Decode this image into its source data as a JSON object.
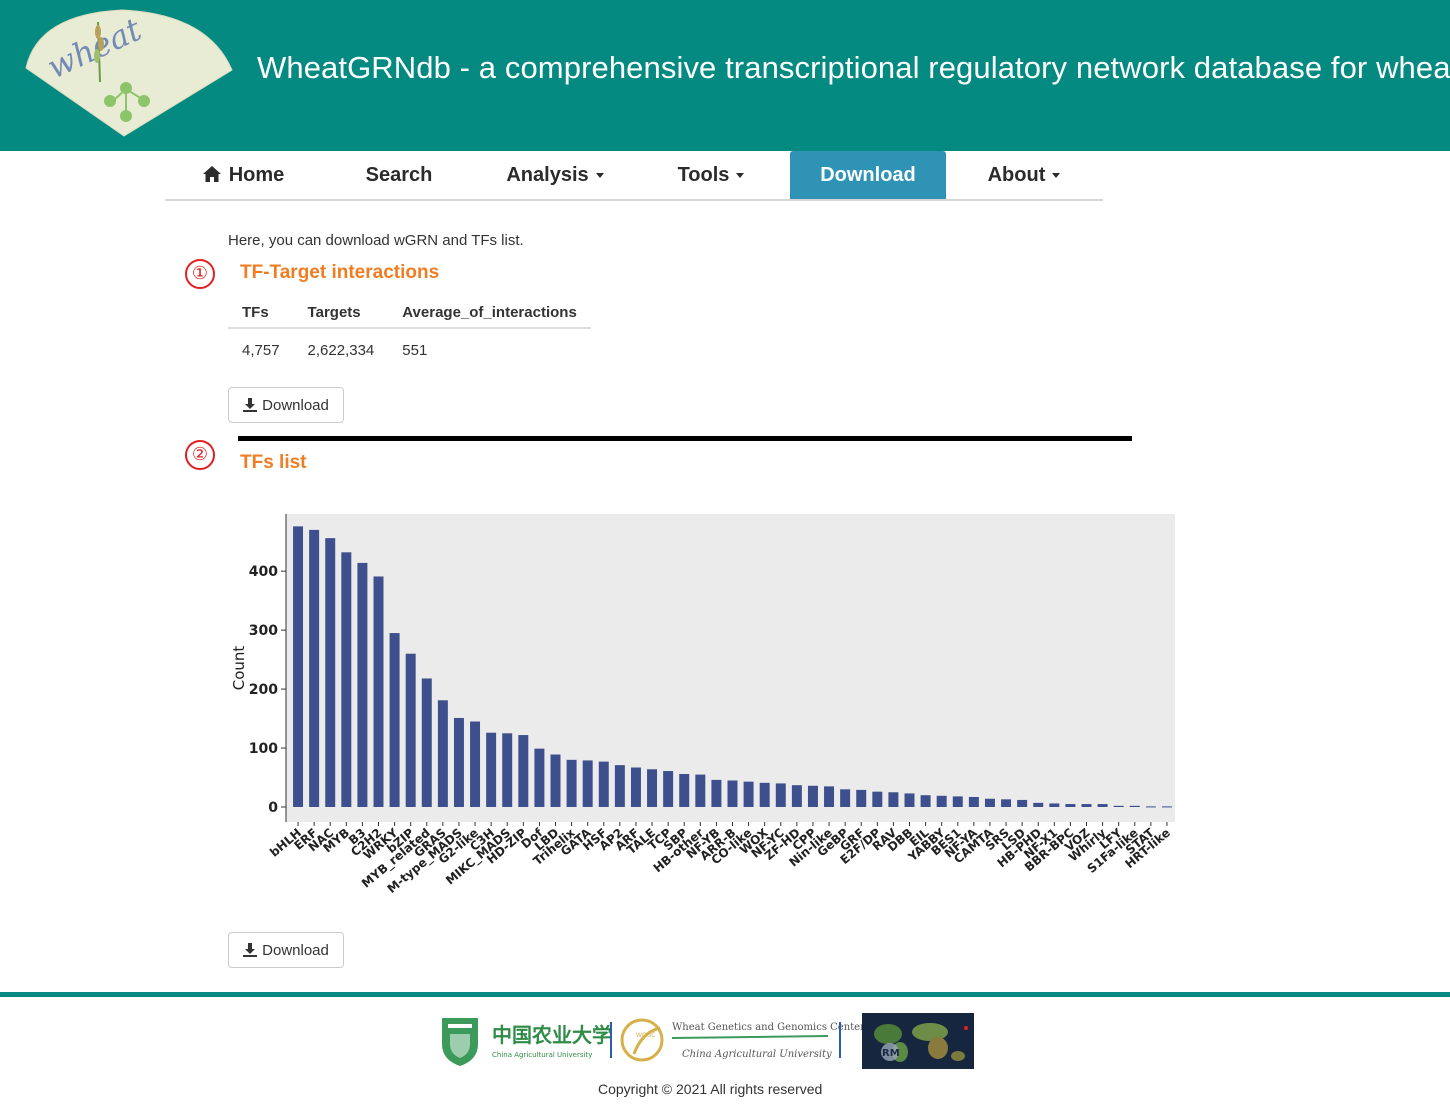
{
  "header": {
    "logo_text": "wheat",
    "title": "WheatGRNdb - a comprehensive transcriptional regulatory network database for wheat"
  },
  "nav": {
    "home": "Home",
    "search": "Search",
    "analysis": "Analysis",
    "tools": "Tools",
    "download": "Download",
    "about": "About"
  },
  "main": {
    "intro": "Here, you can download wGRN and TFs list.",
    "section1": {
      "marker": "①",
      "title": "TF-Target interactions",
      "columns": [
        "TFs",
        "Targets",
        "Average_of_interactions"
      ],
      "row": [
        "4,757",
        "2,622,334",
        "551"
      ],
      "download_label": "Download"
    },
    "section2": {
      "marker": "②",
      "title": "TFs list",
      "download_label": "Download"
    }
  },
  "chart_data": {
    "type": "bar",
    "ylabel": "Count",
    "xlabel": "",
    "ylim": [
      0,
      480
    ],
    "yticks": [
      0,
      100,
      200,
      300,
      400
    ],
    "grid": false,
    "categories": [
      "bHLH",
      "ERF",
      "NAC",
      "MYB",
      "B3",
      "C2H2",
      "WRKY",
      "bZIP",
      "MYB_related",
      "GRAS",
      "M-type_MADS",
      "G2-like",
      "C3H",
      "MIKC_MADS",
      "HD-ZIP",
      "Dof",
      "LBD",
      "Trihelix",
      "GATA",
      "HSF",
      "AP2",
      "ARF",
      "TALE",
      "TCP",
      "SBP",
      "HB-other",
      "NF-YB",
      "ARR-B",
      "CO-like",
      "WOX",
      "NF-YC",
      "ZF-HD",
      "CPP",
      "Nin-like",
      "GeBP",
      "GRF",
      "E2F/DP",
      "RAV",
      "DBB",
      "EIL",
      "YABBY",
      "BES1",
      "NF-YA",
      "CAMTA",
      "SRS",
      "LSD",
      "HB-PHD",
      "NF-X1",
      "BBR-BPC",
      "VOZ",
      "Whirly",
      "LFY",
      "S1Fa-like",
      "STAT",
      "HRT-like"
    ],
    "values": [
      476,
      470,
      456,
      432,
      414,
      391,
      295,
      260,
      218,
      181,
      151,
      145,
      126,
      125,
      122,
      99,
      89,
      80,
      79,
      77,
      71,
      67,
      64,
      61,
      56,
      55,
      46,
      45,
      43,
      41,
      40,
      37,
      36,
      35,
      30,
      29,
      26,
      25,
      23,
      20,
      19,
      18,
      17,
      14,
      13,
      12,
      7,
      6,
      5,
      5,
      5,
      2,
      2,
      1,
      1
    ],
    "bar_color": "#3d4f8c",
    "panel_color": "#ebebeb"
  },
  "footer": {
    "cau_cn": "中国农业大学",
    "cau_en": "China Agricultural University",
    "wggc_badge": "WGGC",
    "wggc_name": "Wheat Genetics and Genomics Center",
    "wggc_sub": "China Agricultural University",
    "map_badge": "RM",
    "copyright": "Copyright © 2021 All rights reserved"
  },
  "colors": {
    "header_bg": "#048a80",
    "active_tab": "#2e93b4",
    "section_title": "#f07d22",
    "marker": "#e02020"
  }
}
